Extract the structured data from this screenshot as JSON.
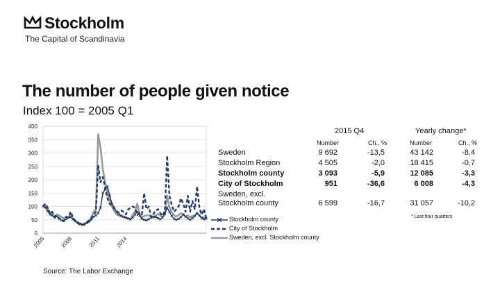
{
  "logo": {
    "brand": "Stockholm",
    "tagline": "The Capital of Scandinavia"
  },
  "title": "The number of people given notice",
  "subtitle": "Index 100 = 2005 Q1",
  "source": "Source: The Labor Exchange",
  "colors": {
    "stockholm_county": "#16325c",
    "city": "#1f3b6e",
    "sweden_excl": "#999999",
    "grid": "#d9d9d9"
  },
  "chart_data": {
    "type": "line",
    "title": "",
    "xlabel": "",
    "ylabel": "",
    "ylim": [
      0,
      400
    ],
    "yticks": [
      0,
      50,
      100,
      150,
      200,
      250,
      300,
      350,
      400
    ],
    "xticks": [
      "2005",
      "2008",
      "2011",
      "2014"
    ],
    "grid": true,
    "legend_position": "bottom-right",
    "series": [
      {
        "name": "Stockholm county",
        "values": [
          100,
          96,
          82,
          70,
          66,
          58,
          62,
          54,
          48,
          46,
          52,
          58,
          60,
          52,
          45,
          40,
          36,
          32,
          34,
          38,
          42,
          50,
          62,
          66,
          75,
          95,
          150,
          165,
          175,
          140,
          110,
          95,
          80,
          70,
          66,
          62,
          58,
          55,
          52,
          58,
          70,
          80,
          66,
          54,
          50,
          48,
          52,
          58,
          62,
          60,
          56,
          52,
          58,
          72,
          95,
          80,
          64,
          54,
          50,
          54,
          60,
          70,
          62,
          55,
          50,
          56,
          64,
          74,
          66,
          56,
          52,
          55
        ]
      },
      {
        "name": "City of Stockholm",
        "values": [
          100,
          110,
          95,
          72,
          80,
          62,
          66,
          55,
          50,
          45,
          60,
          58,
          80,
          60,
          46,
          38,
          32,
          30,
          32,
          40,
          48,
          55,
          68,
          80,
          255,
          190,
          210,
          170,
          130,
          110,
          100,
          92,
          80,
          78,
          85,
          80,
          70,
          88,
          95,
          100,
          95,
          68,
          75,
          70,
          150,
          90,
          100,
          60,
          72,
          85,
          90,
          75,
          65,
          85,
          290,
          140,
          105,
          80,
          90,
          100,
          130,
          110,
          80,
          140,
          80,
          120,
          90,
          175,
          95,
          70,
          90,
          55
        ]
      },
      {
        "name": "Sweden, excl. Stockholm county",
        "values": [
          100,
          104,
          92,
          80,
          70,
          62,
          70,
          66,
          60,
          55,
          62,
          58,
          68,
          55,
          45,
          40,
          36,
          32,
          34,
          40,
          46,
          60,
          80,
          88,
          370,
          320,
          240,
          190,
          150,
          120,
          100,
          82,
          70,
          66,
          62,
          60,
          58,
          55,
          52,
          70,
          80,
          110,
          72,
          60,
          64,
          66,
          66,
          62,
          58,
          66,
          72,
          66,
          60,
          72,
          140,
          98,
          78,
          66,
          62,
          68,
          74,
          70,
          62,
          66,
          60,
          64,
          66,
          76,
          66,
          58,
          60,
          52
        ]
      }
    ]
  },
  "stats": {
    "headers": {
      "q4": "2015 Q4",
      "yearly": "Yearly change*"
    },
    "subheaders": [
      "Number",
      "Ch., %",
      "Number",
      "Ch., %"
    ],
    "rows": [
      {
        "label": "Sweden",
        "q4_number": "9 692",
        "q4_change": "-13,5",
        "y_number": "43 142",
        "y_change": "-8,4",
        "bold": false
      },
      {
        "label": "Stockholm Region",
        "q4_number": "4 505",
        "q4_change": "-2,0",
        "y_number": "18 415",
        "y_change": "-0,7",
        "bold": false
      },
      {
        "label": "Stockholm county",
        "q4_number": "3 093",
        "q4_change": "-5,9",
        "y_number": "12 085",
        "y_change": "-3,3",
        "bold": true
      },
      {
        "label": "City of Stockholm",
        "q4_number": "951",
        "q4_change": "-36,6",
        "y_number": "6 008",
        "y_change": "-4,3",
        "bold": true
      },
      {
        "label": "Sweden, excl.",
        "q4_number": "",
        "q4_change": "",
        "y_number": "",
        "y_change": "",
        "bold": false
      },
      {
        "label": "Stockholm county",
        "q4_number": "6 599",
        "q4_change": "-16,7",
        "y_number": "31 057",
        "y_change": "-10,2",
        "bold": false
      }
    ],
    "footnote": "* Last four quarters"
  }
}
